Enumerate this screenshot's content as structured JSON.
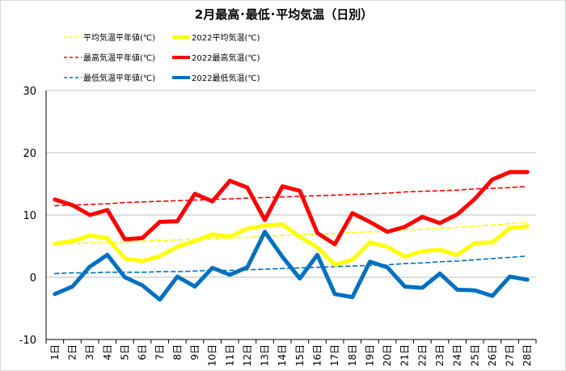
{
  "chart_data": {
    "type": "line",
    "title": "2月最高･最低･平均気温（日別）",
    "xlabel": "",
    "ylabel": "",
    "ylim": [
      -10,
      30
    ],
    "yticks": [
      -10,
      0,
      10,
      20,
      30
    ],
    "grid": true,
    "legend_position": "top",
    "categories": [
      "1日",
      "2日",
      "3日",
      "4日",
      "5日",
      "6日",
      "7日",
      "8日",
      "9日",
      "10日",
      "11日",
      "12日",
      "13日",
      "14日",
      "15日",
      "16日",
      "17日",
      "18日",
      "19日",
      "20日",
      "21日",
      "22日",
      "23日",
      "24日",
      "25日",
      "26日",
      "27日",
      "28日"
    ],
    "series": [
      {
        "name": "平均気温平年値(℃)",
        "color": "#ffff00",
        "style": "dashed",
        "width": "thin",
        "values": [
          5.3,
          5.4,
          5.5,
          5.6,
          5.7,
          5.8,
          5.9,
          6.0,
          6.1,
          6.2,
          6.3,
          6.4,
          6.6,
          6.7,
          6.8,
          6.9,
          7.0,
          7.2,
          7.3,
          7.4,
          7.6,
          7.7,
          7.9,
          8.0,
          8.2,
          8.4,
          8.6,
          8.8
        ]
      },
      {
        "name": "2022平均気温(℃)",
        "color": "#ffff00",
        "style": "solid",
        "width": "thick",
        "values": [
          5.4,
          5.8,
          6.7,
          6.3,
          3.0,
          2.6,
          3.4,
          4.9,
          5.8,
          6.9,
          6.5,
          7.8,
          8.3,
          8.5,
          6.5,
          4.8,
          2.0,
          2.8,
          5.6,
          4.9,
          3.3,
          4.2,
          4.4,
          3.6,
          5.5,
          5.6,
          7.9,
          8.2
        ]
      },
      {
        "name": "最高気温平年値(℃)",
        "color": "#ff0000",
        "style": "dashed",
        "width": "thin",
        "values": [
          11.5,
          11.6,
          11.7,
          11.8,
          12.0,
          12.1,
          12.2,
          12.3,
          12.4,
          12.5,
          12.6,
          12.7,
          12.8,
          12.9,
          13.0,
          13.1,
          13.2,
          13.3,
          13.4,
          13.5,
          13.7,
          13.8,
          13.9,
          14.0,
          14.2,
          14.3,
          14.4,
          14.6
        ]
      },
      {
        "name": "2022最高気温(℃)",
        "color": "#ff0000",
        "style": "solid",
        "width": "thick",
        "values": [
          12.5,
          11.6,
          10.0,
          10.8,
          6.1,
          6.3,
          8.9,
          9.0,
          13.4,
          12.2,
          15.5,
          14.4,
          9.2,
          14.6,
          13.9,
          7.1,
          5.3,
          10.3,
          8.9,
          7.3,
          8.1,
          9.7,
          8.7,
          10.1,
          12.6,
          15.7,
          16.9,
          16.9
        ]
      },
      {
        "name": "最低気温平年値(℃)",
        "color": "#0070c0",
        "style": "dashed",
        "width": "thin",
        "values": [
          0.6,
          0.7,
          0.7,
          0.8,
          0.8,
          0.8,
          0.9,
          0.9,
          1.0,
          1.1,
          1.1,
          1.2,
          1.3,
          1.4,
          1.5,
          1.6,
          1.7,
          1.8,
          1.9,
          2.0,
          2.2,
          2.3,
          2.5,
          2.6,
          2.8,
          3.0,
          3.2,
          3.4
        ]
      },
      {
        "name": "2022最低気温(℃)",
        "color": "#0070c0",
        "style": "solid",
        "width": "thick",
        "values": [
          -2.7,
          -1.5,
          1.7,
          3.6,
          0.0,
          -1.3,
          -3.6,
          0.1,
          -1.5,
          1.5,
          0.4,
          1.6,
          7.3,
          3.3,
          -0.2,
          3.6,
          -2.7,
          -3.2,
          2.5,
          1.6,
          -1.5,
          -1.7,
          0.6,
          -2.0,
          -2.1,
          -3.0,
          0.1,
          -0.4
        ]
      }
    ]
  }
}
